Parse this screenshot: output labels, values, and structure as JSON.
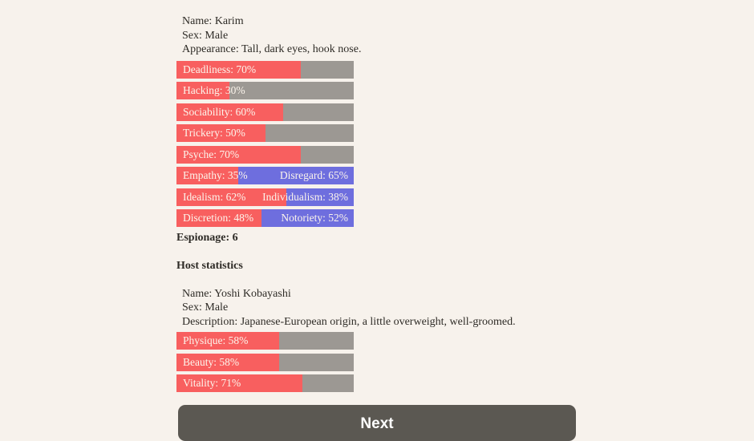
{
  "colors": {
    "background": "#f7f2ec",
    "bar_fill_red": "#f85f5f",
    "bar_empty_gray": "#9c9893",
    "bar_opposed_blue": "#6e6ede",
    "body_text": "#2e2b26",
    "bar_text": "#fcf5ec",
    "button_bg": "#5b5852",
    "button_text": "#ffffff"
  },
  "agent": {
    "info_lines": [
      "Name: Karim",
      "Sex: Male",
      "Appearance: Tall, dark eyes, hook nose."
    ],
    "stats": [
      {
        "label": "Deadliness",
        "value": 70
      },
      {
        "label": "Hacking",
        "value": 30
      },
      {
        "label": "Sociability",
        "value": 60
      },
      {
        "label": "Trickery",
        "value": 50
      },
      {
        "label": "Psyche",
        "value": 70
      }
    ],
    "dual_stats": [
      {
        "left_label": "Empathy",
        "left_value": 35,
        "right_label": "Disregard",
        "right_value": 65
      },
      {
        "left_label": "Idealism",
        "left_value": 62,
        "right_label": "Individualism",
        "right_value": 38
      },
      {
        "left_label": "Discretion",
        "left_value": 48,
        "right_label": "Notoriety",
        "right_value": 52
      }
    ],
    "espionage_line": "Espionage: 6"
  },
  "host": {
    "heading": "Host statistics",
    "info_lines": [
      "Name: Yoshi Kobayashi",
      "Sex: Male",
      "Description: Japanese-European origin, a little overweight, well-groomed."
    ],
    "stats": [
      {
        "label": "Physique",
        "value": 58
      },
      {
        "label": "Beauty",
        "value": 58
      },
      {
        "label": "Vitality",
        "value": 71
      }
    ]
  },
  "next_button_label": "Next"
}
